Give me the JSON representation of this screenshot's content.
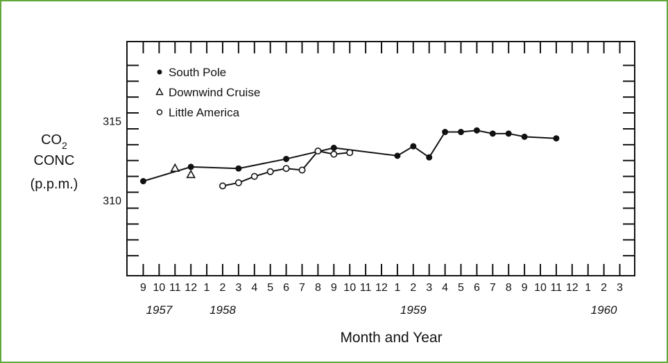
{
  "chart_data": {
    "type": "line",
    "title": "",
    "ylabel": {
      "line1": "CO",
      "line1_sub": "2",
      "line2": "CONC",
      "line3": "(p.p.m.)"
    },
    "xlabel": "Month and Year",
    "ylim": [
      306,
      319
    ],
    "yticks": [
      310,
      315
    ],
    "x_axis": {
      "start": "1957-09",
      "month_labels": [
        "9",
        "10",
        "11",
        "12",
        "1",
        "2",
        "3",
        "4",
        "5",
        "6",
        "7",
        "8",
        "9",
        "10",
        "11",
        "12",
        "1",
        "2",
        "3",
        "4",
        "5",
        "6",
        "7",
        "8",
        "9",
        "10",
        "11",
        "12",
        "1",
        "2",
        "3"
      ],
      "year_labels": [
        {
          "label": "1957",
          "at": "1957-10"
        },
        {
          "label": "1958",
          "at": "1958-02"
        },
        {
          "label": "1959",
          "at": "1959-02"
        },
        {
          "label": "1960",
          "at": "1960-02"
        }
      ]
    },
    "legend_position": "top-left",
    "series": [
      {
        "name": "South Pole",
        "marker": "filled-circle",
        "points": [
          [
            "1957-09",
            311.2
          ],
          [
            "1957-12",
            312.1
          ],
          [
            "1958-03",
            312.0
          ],
          [
            "1958-06",
            312.6
          ],
          [
            "1958-09",
            313.3
          ],
          [
            "1959-01",
            312.8
          ],
          [
            "1959-02",
            313.4
          ],
          [
            "1959-03",
            312.7
          ],
          [
            "1959-04",
            314.3
          ],
          [
            "1959-05",
            314.3
          ],
          [
            "1959-06",
            314.4
          ],
          [
            "1959-07",
            314.2
          ],
          [
            "1959-08",
            314.2
          ],
          [
            "1959-09",
            314.0
          ],
          [
            "1959-11",
            313.9
          ]
        ]
      },
      {
        "name": "Downwind Cruise",
        "marker": "triangle",
        "points": [
          [
            "1957-11",
            312.0
          ],
          [
            "1957-12",
            311.6
          ]
        ]
      },
      {
        "name": "Little America",
        "marker": "open-circle",
        "points": [
          [
            "1958-02",
            310.9
          ],
          [
            "1958-03",
            311.1
          ],
          [
            "1958-04",
            311.5
          ],
          [
            "1958-05",
            311.8
          ],
          [
            "1958-06",
            312.0
          ],
          [
            "1958-07",
            311.9
          ],
          [
            "1958-08",
            313.1
          ],
          [
            "1958-09",
            312.9
          ],
          [
            "1958-10",
            313.0
          ]
        ]
      }
    ]
  }
}
